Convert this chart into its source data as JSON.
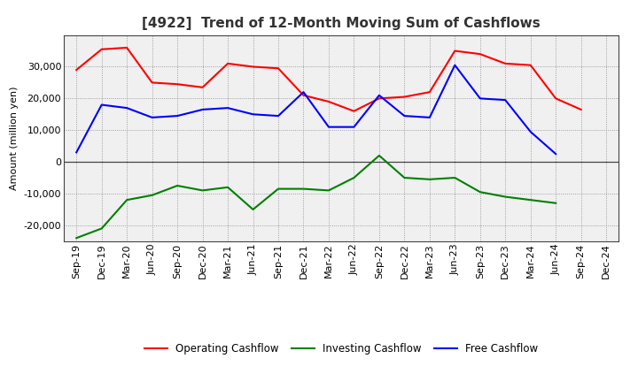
{
  "title": "[4922]  Trend of 12-Month Moving Sum of Cashflows",
  "ylabel": "Amount (million yen)",
  "x_labels": [
    "Sep-19",
    "Dec-19",
    "Mar-20",
    "Jun-20",
    "Sep-20",
    "Dec-20",
    "Mar-21",
    "Jun-21",
    "Sep-21",
    "Dec-21",
    "Mar-22",
    "Jun-22",
    "Sep-22",
    "Dec-22",
    "Mar-23",
    "Jun-23",
    "Sep-23",
    "Dec-23",
    "Mar-24",
    "Jun-24",
    "Sep-24",
    "Dec-24"
  ],
  "operating": [
    29000,
    35500,
    36000,
    25000,
    24500,
    23500,
    31000,
    30000,
    29500,
    21000,
    19000,
    16000,
    20000,
    20500,
    22000,
    35000,
    34000,
    31000,
    30500,
    20000,
    16500,
    null
  ],
  "investing": [
    -24000,
    -21000,
    -12000,
    -10500,
    -7500,
    -9000,
    -8000,
    -15000,
    -8500,
    -8500,
    -9000,
    -5000,
    2000,
    -5000,
    -5500,
    -5000,
    -9500,
    -11000,
    -12000,
    -13000,
    null,
    null
  ],
  "free": [
    3000,
    18000,
    17000,
    14000,
    14500,
    16500,
    17000,
    15000,
    14500,
    22000,
    11000,
    11000,
    21000,
    14500,
    14000,
    30500,
    20000,
    19500,
    9500,
    2500,
    null,
    null
  ],
  "operating_color": "#ff0000",
  "investing_color": "#008000",
  "free_color": "#0000ff",
  "ylim": [
    -25000,
    40000
  ],
  "yticks": [
    -20000,
    -10000,
    0,
    10000,
    20000,
    30000
  ],
  "background_color": "#ffffff",
  "plot_bg_color": "#f0f0f0",
  "grid_color": "#888888",
  "line_width": 1.5,
  "title_fontsize": 11,
  "axis_fontsize": 8,
  "ylabel_fontsize": 8
}
